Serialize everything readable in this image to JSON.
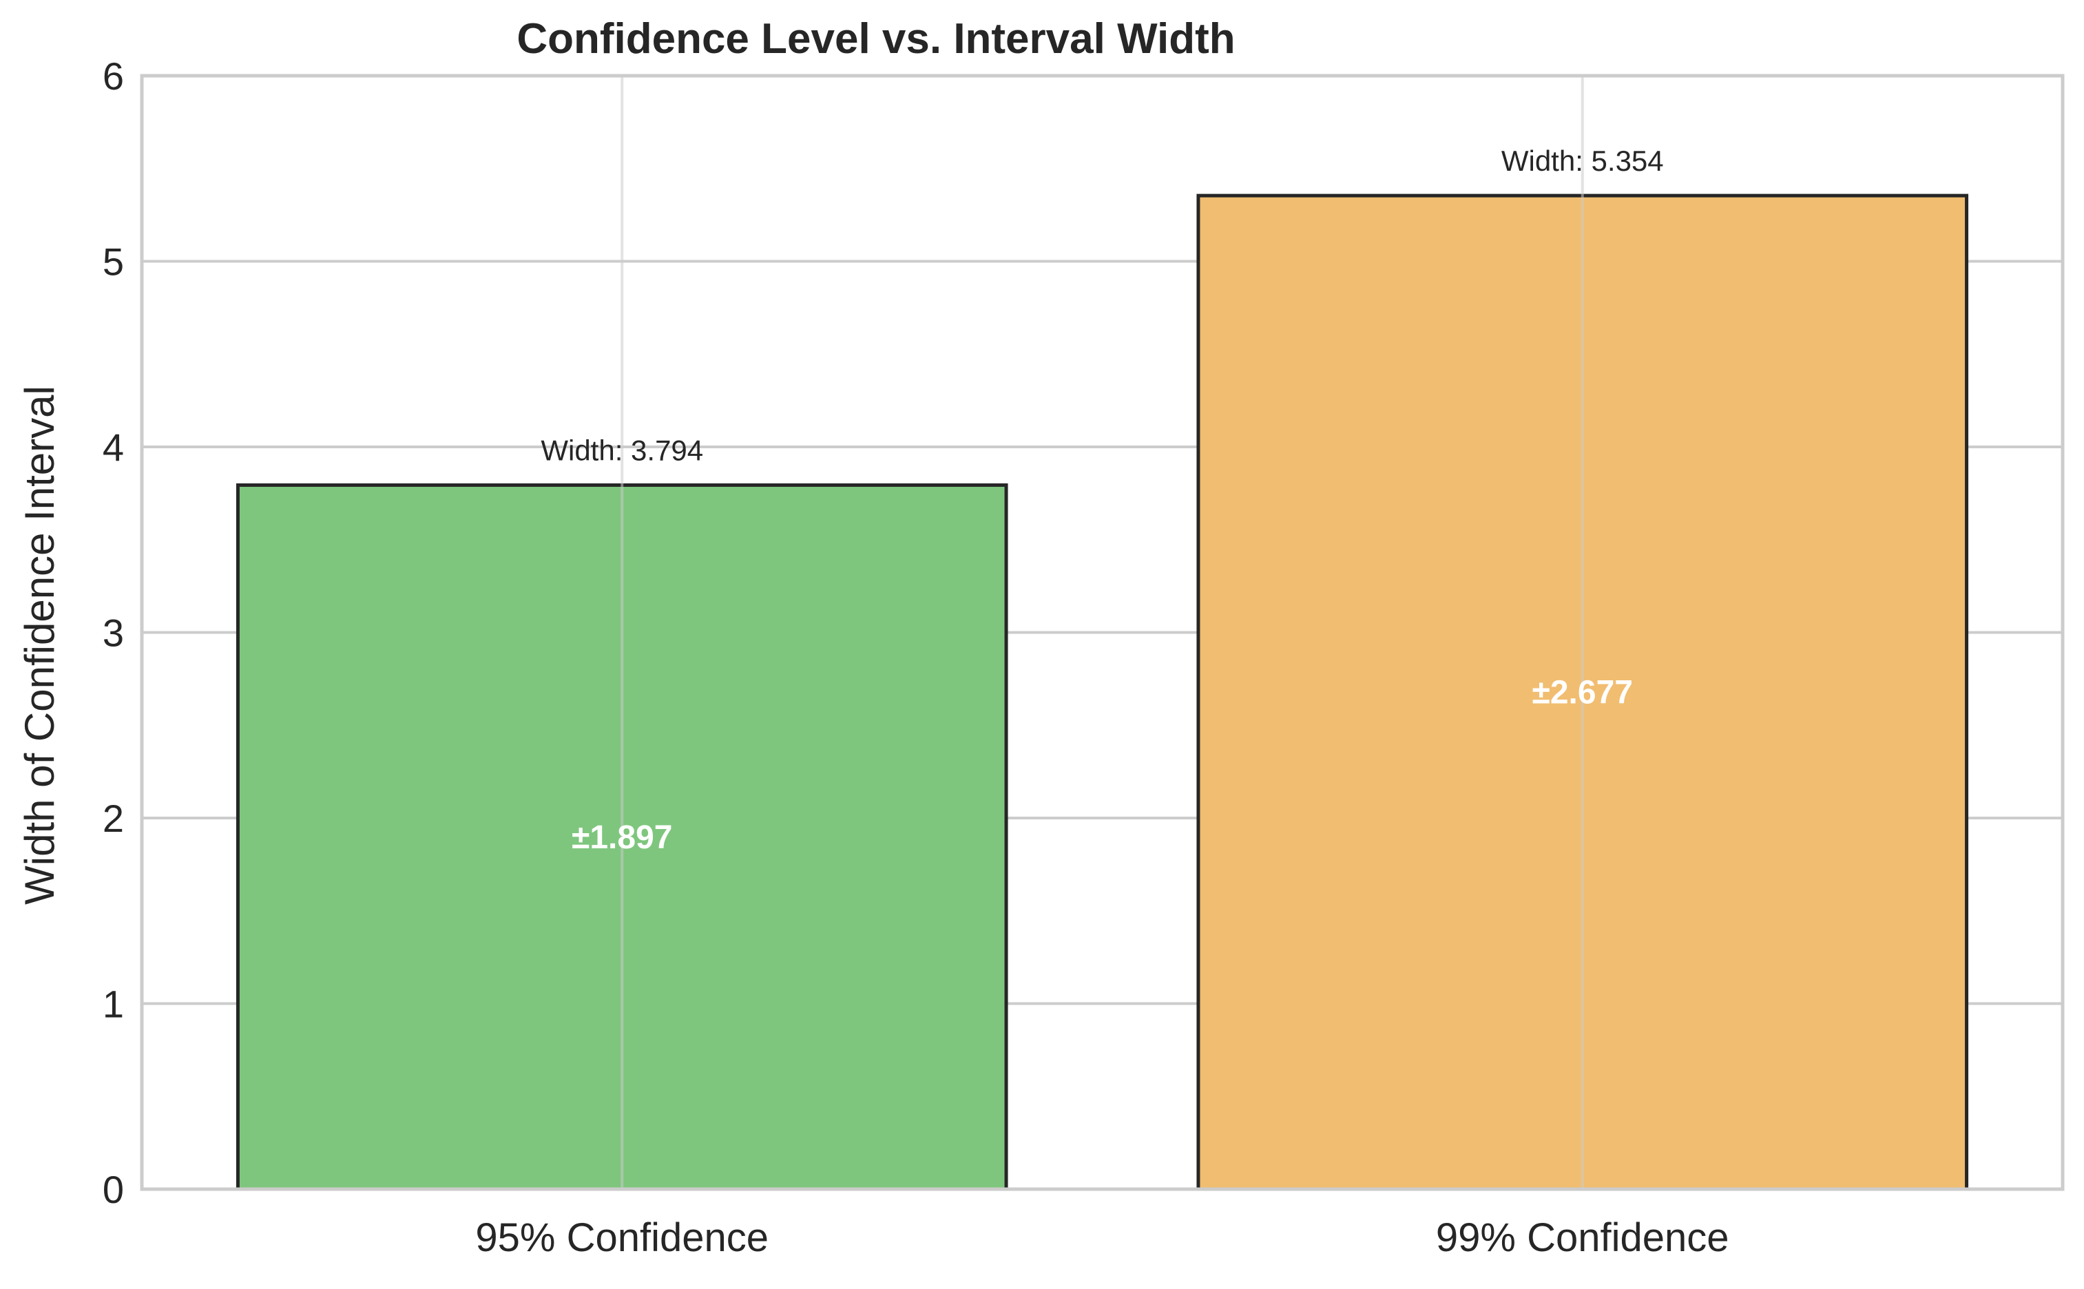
{
  "chart_data": {
    "type": "bar",
    "title": "Confidence Level vs. Interval Width",
    "xlabel": "",
    "ylabel": "Width of Confidence Interval",
    "categories": [
      "95% Confidence",
      "99% Confidence"
    ],
    "values": [
      3.794,
      5.354
    ],
    "bar_labels": [
      "Width: 3.794",
      "Width: 5.354"
    ],
    "inner_labels": [
      "±1.897",
      "±2.677"
    ],
    "inner_label_values": [
      1.897,
      2.677
    ],
    "ylim": [
      0,
      6
    ],
    "yticks": [
      "0",
      "1",
      "2",
      "3",
      "4",
      "5",
      "6"
    ],
    "grid": true,
    "colors": [
      "#7ec67d",
      "#f1bd70"
    ],
    "edge_color": "#262626",
    "grid_color": "#cccccc",
    "spine_color": "#cccccc"
  }
}
